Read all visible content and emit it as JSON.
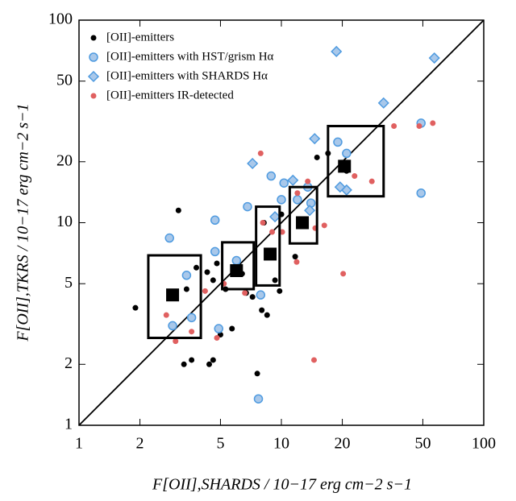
{
  "chart_data": {
    "type": "scatter",
    "x_label": "F[OII],SHARDS / 10−17 erg cm−2 s−1",
    "y_label": "F[OII],TKRS / 10−17 erg cm−2 s−1",
    "log_x": true,
    "log_y": true,
    "xlim": [
      1,
      100
    ],
    "ylim": [
      1,
      100
    ],
    "xticks": [
      1,
      2,
      5,
      10,
      20,
      50,
      100
    ],
    "yticks": [
      1,
      2,
      5,
      10,
      20,
      50,
      100
    ],
    "legend": "top-left",
    "series": [
      {
        "name": "[OII]-emitters",
        "color": "#000000",
        "marker": "dot",
        "x": [
          1.9,
          3.1,
          3.3,
          3.6,
          4.4,
          4.6,
          5.0,
          4.3,
          5.7,
          4.6,
          4.8,
          5.3,
          6.4,
          7.2,
          8.0,
          8.5,
          7.6,
          9.3,
          10.0,
          8.2,
          11.7,
          15.0,
          17.0,
          21.0,
          6.7,
          3.8,
          3.4,
          9.8
        ],
        "y": [
          3.8,
          11.5,
          2.0,
          2.1,
          2.0,
          2.1,
          2.8,
          5.7,
          3.0,
          5.2,
          6.3,
          4.7,
          5.6,
          4.3,
          3.7,
          3.5,
          1.8,
          5.2,
          11.0,
          10.0,
          6.8,
          21.0,
          22.0,
          18.0,
          4.5,
          6.0,
          4.7,
          4.6
        ]
      },
      {
        "name": "[OII]-emitters with HST/grism Hα",
        "color": "#4f9be0",
        "marker": "circle",
        "x": [
          2.8,
          3.4,
          4.7,
          4.7,
          4.9,
          6.8,
          7.7,
          7.9,
          8.9,
          10.0,
          10.3,
          12.0,
          13.5,
          14.0,
          19.0,
          21.0,
          49.0,
          49.0,
          6.0,
          2.9,
          3.6
        ],
        "y": [
          8.4,
          5.5,
          10.3,
          7.2,
          3.0,
          12.0,
          1.35,
          4.4,
          17.0,
          13.0,
          15.7,
          13.0,
          15.0,
          12.5,
          25.0,
          22.0,
          31.0,
          14.0,
          6.5,
          3.1,
          3.4
        ]
      },
      {
        "name": "[OII]-emitters with SHARDS Hα",
        "color": "#4f9be0",
        "marker": "diamond",
        "x": [
          7.2,
          9.3,
          11.4,
          13.8,
          14.6,
          18.7,
          32.0,
          57.0,
          21.0,
          19.5
        ],
        "y": [
          19.6,
          10.7,
          16.2,
          11.5,
          26.0,
          70.0,
          39.0,
          65.0,
          14.5,
          15.0
        ]
      },
      {
        "name": "[OII]-emitters IR-detected",
        "color": "#e06060",
        "marker": "dot",
        "x": [
          2.7,
          3.6,
          4.2,
          5.2,
          6.6,
          8.1,
          7.9,
          10.1,
          11.9,
          13.5,
          14.7,
          16.3,
          20.2,
          23.0,
          28.0,
          36.0,
          48.0,
          56.0,
          14.5,
          12.0,
          9.0,
          4.8,
          3.0
        ],
        "y": [
          3.5,
          2.9,
          4.6,
          5.0,
          4.5,
          10.0,
          22.0,
          9.0,
          6.4,
          16.0,
          9.4,
          9.7,
          5.6,
          17.0,
          16.0,
          30.0,
          30.0,
          31.0,
          2.1,
          14.0,
          9.0,
          2.7,
          2.6
        ]
      }
    ],
    "bins": {
      "x": [
        2.9,
        6.0,
        8.8,
        12.7,
        20.5
      ],
      "y": [
        4.4,
        5.8,
        7.0,
        10.0,
        19.0
      ],
      "x_low": [
        2.2,
        5.1,
        7.5,
        11.0,
        17.0
      ],
      "x_high": [
        4.0,
        7.3,
        9.8,
        15.0,
        32.0
      ],
      "y_low": [
        2.7,
        4.7,
        4.9,
        7.9,
        13.5
      ],
      "y_high": [
        6.9,
        8.0,
        12.0,
        15.0,
        30.0
      ]
    }
  }
}
